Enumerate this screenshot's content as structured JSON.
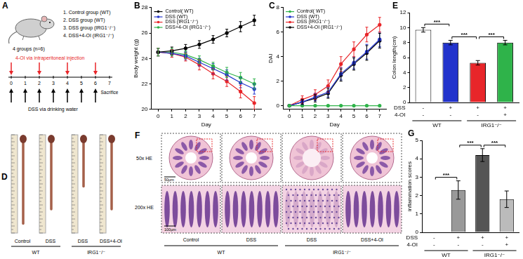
{
  "panel_a": {
    "label": "A",
    "groups_title": "4 groups (n=6)",
    "groups": [
      "1.  Control group (WT)",
      "2.  DSS group (WT)",
      "3.  DSS group (IRG1⁻/⁻)",
      "4.  DSS+4-OI (IRG1⁻/⁻)"
    ],
    "injection_text": "4-OI via intraperitoneal injection",
    "days": [
      0,
      1,
      2,
      3,
      4,
      5,
      6,
      7
    ],
    "injection_days": [
      0,
      2,
      4,
      6
    ],
    "dss_days": [
      0,
      1,
      2,
      3,
      4,
      5,
      6
    ],
    "dss_text": "DSS via drinking water",
    "sacrifice_day": 7,
    "sacrifice_text": "Sacrifice"
  },
  "panel_d": {
    "label": "D",
    "columns": [
      "Control",
      "DSS",
      "DSS",
      "DSS+4-OI"
    ],
    "groups": [
      {
        "name": "WT",
        "columns": [
          0,
          1
        ]
      },
      {
        "name": "IRG1⁻/⁻",
        "columns": [
          2,
          3
        ]
      }
    ]
  },
  "panel_f": {
    "label": "F",
    "rows": [
      "50x HE",
      "200x HE"
    ],
    "columns": [
      "Control",
      "DSS",
      "DSS",
      "DSS+4-OI"
    ],
    "groups": [
      {
        "name": "WT",
        "columns": [
          0,
          1
        ]
      },
      {
        "name": "IRG1⁻/⁻",
        "columns": [
          2,
          3
        ]
      }
    ],
    "scale_bars": [
      "50μm",
      "100μm"
    ]
  },
  "chart_data": [
    {
      "panel_label": "B",
      "type": "line",
      "y_label": "Body weight (g)",
      "x_label": "Day",
      "x": [
        0,
        1,
        2,
        3,
        4,
        5,
        6,
        7
      ],
      "xlim": [
        -0.5,
        7.5
      ],
      "xticks": [
        0,
        1,
        2,
        3,
        4,
        5,
        6,
        7
      ],
      "ylim": [
        20,
        28
      ],
      "yticks": [
        20,
        22,
        24,
        26,
        28
      ],
      "grid": false,
      "legend": "upper left",
      "marker": "circle",
      "series": [
        {
          "name": "Control( WT)",
          "color": "#000000",
          "values": [
            24.5,
            24.6,
            24.8,
            25.1,
            25.5,
            26.0,
            26.5,
            27.0
          ],
          "errors": [
            0.3,
            0.3,
            0.3,
            0.3,
            0.3,
            0.3,
            0.4,
            0.4
          ]
        },
        {
          "name": "DSS (WT)",
          "color": "#2233cc",
          "values": [
            24.5,
            24.4,
            24.2,
            23.7,
            23.2,
            22.7,
            22.1,
            21.6
          ],
          "errors": [
            0.3,
            0.3,
            0.3,
            0.3,
            0.4,
            0.4,
            0.4,
            0.4
          ]
        },
        {
          "name": "DSS (IRG1⁻/⁻)",
          "color": "#e8262a",
          "values": [
            24.5,
            24.4,
            24.1,
            23.5,
            22.8,
            22.2,
            21.4,
            20.5
          ],
          "errors": [
            0.3,
            0.3,
            0.3,
            0.4,
            0.4,
            0.4,
            0.5,
            0.5
          ]
        },
        {
          "name": "DSS+4-OI (IRG1⁻/⁻)",
          "color": "#2fb34a",
          "values": [
            24.5,
            24.5,
            24.3,
            23.9,
            23.4,
            22.9,
            22.5,
            22.0
          ],
          "errors": [
            0.3,
            0.3,
            0.3,
            0.3,
            0.3,
            0.4,
            0.4,
            0.4
          ]
        }
      ]
    },
    {
      "panel_label": "C",
      "type": "line",
      "y_label": "DAI",
      "x_label": "Day",
      "x": [
        0,
        1,
        2,
        3,
        4,
        5,
        6,
        7
      ],
      "xlim": [
        -0.5,
        7.5
      ],
      "xticks": [
        0,
        1,
        2,
        3,
        4,
        5,
        6,
        7
      ],
      "ylim": [
        -0.3,
        8
      ],
      "yticks": [
        0,
        2,
        4,
        6,
        8
      ],
      "grid": false,
      "legend": "upper left",
      "marker": "circle",
      "series": [
        {
          "name": "Control( WT)",
          "color": "#2fb34a",
          "values": [
            0,
            0,
            0,
            0,
            0,
            0,
            0,
            0
          ],
          "errors": [
            0,
            0,
            0,
            0,
            0,
            0,
            0,
            0
          ]
        },
        {
          "name": "DSS (WT)",
          "color": "#2233cc",
          "values": [
            0,
            0.3,
            0.7,
            1.1,
            2.6,
            3.5,
            4.4,
            5.4
          ],
          "errors": [
            0,
            0.2,
            0.3,
            0.4,
            0.5,
            0.5,
            0.6,
            0.6
          ]
        },
        {
          "name": "DSS (IRG1⁻/⁻)",
          "color": "#e8262a",
          "values": [
            0,
            0.5,
            0.9,
            1.6,
            3.4,
            4.6,
            5.8,
            6.6
          ],
          "errors": [
            0,
            0.3,
            0.4,
            0.5,
            0.6,
            0.6,
            0.6,
            0.6
          ]
        },
        {
          "name": "DSS+4-OI (IRG1⁻/⁻)",
          "color": "#000000",
          "values": [
            0,
            0.3,
            0.6,
            1.0,
            2.5,
            3.4,
            4.3,
            5.3
          ],
          "errors": [
            0,
            0.2,
            0.3,
            0.4,
            0.5,
            0.5,
            0.6,
            0.6
          ]
        }
      ]
    },
    {
      "panel_label": "E",
      "type": "bar",
      "y_label": "Colon length(cm)",
      "ylim": [
        0,
        12
      ],
      "yticks": [
        0,
        2,
        4,
        6,
        8,
        10,
        12
      ],
      "grid": false,
      "values": [
        9.7,
        8.0,
        5.3,
        8.0
      ],
      "errors": [
        0.3,
        0.3,
        0.3,
        0.3
      ],
      "colors": [
        "#ffffff",
        "#2233cc",
        "#e8262a",
        "#2fb34a"
      ],
      "conditions": [
        {
          "name": "DSS",
          "values": [
            "-",
            "+",
            "+",
            "+"
          ]
        },
        {
          "name": "4-OI",
          "values": [
            "-",
            "-",
            "-",
            "+"
          ]
        }
      ],
      "groups": [
        {
          "name": "WT",
          "bars": [
            0,
            1
          ]
        },
        {
          "name": "IRG1⁻/⁻",
          "bars": [
            2,
            3
          ]
        }
      ],
      "annotations": [
        {
          "from": 0,
          "to": 1,
          "text": "***"
        },
        {
          "from": 1,
          "to": 2,
          "text": "***"
        },
        {
          "from": 2,
          "to": 3,
          "text": "***"
        }
      ]
    },
    {
      "panel_label": "G",
      "type": "bar",
      "y_label": "inflammation scores",
      "ylim": [
        0,
        5
      ],
      "yticks": [
        0,
        1,
        2,
        3,
        4,
        5
      ],
      "grid": false,
      "values": [
        0,
        2.3,
        4.2,
        1.8
      ],
      "errors": [
        0,
        0.5,
        0.35,
        0.45
      ],
      "colors": [
        "#ffffff",
        "#999999",
        "#555555",
        "#bbbbbb"
      ],
      "conditions": [
        {
          "name": "DSS",
          "values": [
            "-",
            "+",
            "+",
            "+"
          ]
        },
        {
          "name": "4-OI",
          "values": [
            "-",
            "-",
            "-",
            "+"
          ]
        }
      ],
      "groups": [
        {
          "name": "WT",
          "bars": [
            0,
            1
          ]
        },
        {
          "name": "IRG1⁻/⁻",
          "bars": [
            2,
            3
          ]
        }
      ],
      "annotations": [
        {
          "from": 0,
          "to": 1,
          "text": "***"
        },
        {
          "from": 1,
          "to": 2,
          "text": "***"
        },
        {
          "from": 2,
          "to": 3,
          "text": "***"
        }
      ]
    }
  ]
}
